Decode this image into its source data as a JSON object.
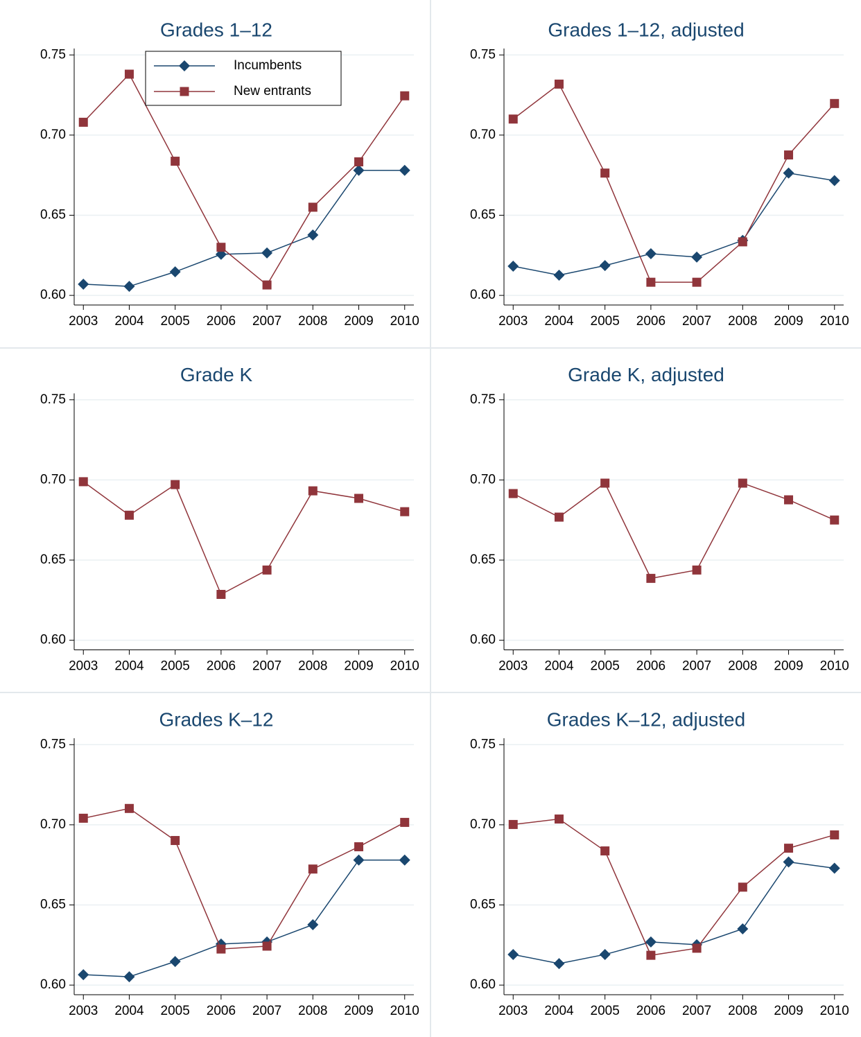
{
  "chart_data": [
    {
      "type": "line",
      "title": "Grades 1–12",
      "legend": "top",
      "x": [
        2003,
        2004,
        2005,
        2006,
        2007,
        2008,
        2009,
        2010
      ],
      "xlim": [
        2002.8,
        2010.2
      ],
      "xticks": [
        2003,
        2004,
        2005,
        2006,
        2007,
        2008,
        2009,
        2010
      ],
      "ylim": [
        0.594,
        0.754
      ],
      "yticks": [
        {
          "value": 0.6,
          "label": "0.60"
        },
        0.65,
        {
          "value": 0.7,
          "label": "0.70"
        },
        0.75
      ],
      "grid": true,
      "series": [
        {
          "name": "Incumbents",
          "color": "#1a476f",
          "marker": "diamond",
          "values": [
            0.607,
            0.6056,
            0.6147,
            0.6256,
            0.6265,
            0.6377,
            0.678,
            0.678
          ]
        },
        {
          "name": "New entrants",
          "color": "#90353b",
          "marker": "square",
          "values": [
            0.708,
            0.738,
            0.6837,
            0.63,
            0.6065,
            0.655,
            0.6833,
            0.7245
          ]
        }
      ]
    },
    {
      "type": "line",
      "title": "Grades 1–12, adjusted",
      "x": [
        2003,
        2004,
        2005,
        2006,
        2007,
        2008,
        2009,
        2010
      ],
      "xlim": [
        2002.8,
        2010.2
      ],
      "xticks": [
        2003,
        2004,
        2005,
        2006,
        2007,
        2008,
        2009,
        2010
      ],
      "ylim": [
        0.594,
        0.754
      ],
      "yticks": [
        {
          "value": 0.6,
          "label": "0.60"
        },
        0.65,
        {
          "value": 0.7,
          "label": "0.70"
        },
        0.75
      ],
      "grid": true,
      "series": [
        {
          "name": "Incumbents",
          "color": "#1a476f",
          "marker": "diamond",
          "values": [
            0.6182,
            0.6126,
            0.6186,
            0.626,
            0.6239,
            0.6343,
            0.6763,
            0.6716
          ]
        },
        {
          "name": "New entrants",
          "color": "#90353b",
          "marker": "square",
          "values": [
            0.71,
            0.7318,
            0.6763,
            0.6082,
            0.6082,
            0.6334,
            0.6876,
            0.7197
          ]
        }
      ]
    },
    {
      "type": "line",
      "title": "Grade K",
      "x": [
        2003,
        2004,
        2005,
        2006,
        2007,
        2008,
        2009,
        2010
      ],
      "xlim": [
        2002.8,
        2010.2
      ],
      "xticks": [
        2003,
        2004,
        2005,
        2006,
        2007,
        2008,
        2009,
        2010
      ],
      "ylim": [
        0.594,
        0.754
      ],
      "yticks": [
        {
          "value": 0.6,
          "label": "0.60"
        },
        0.65,
        {
          "value": 0.7,
          "label": "0.70"
        },
        0.75
      ],
      "grid": true,
      "series": [
        {
          "name": "New entrants",
          "color": "#90353b",
          "marker": "square",
          "values": [
            0.6989,
            0.678,
            0.6971,
            0.6286,
            0.6438,
            0.6932,
            0.6885,
            0.6802
          ]
        }
      ]
    },
    {
      "type": "line",
      "title": "Grade K, adjusted",
      "x": [
        2003,
        2004,
        2005,
        2006,
        2007,
        2008,
        2009,
        2010
      ],
      "xlim": [
        2002.8,
        2010.2
      ],
      "xticks": [
        2003,
        2004,
        2005,
        2006,
        2007,
        2008,
        2009,
        2010
      ],
      "ylim": [
        0.594,
        0.754
      ],
      "yticks": [
        {
          "value": 0.6,
          "label": "0.60"
        },
        0.65,
        {
          "value": 0.7,
          "label": "0.70"
        },
        0.75
      ],
      "grid": true,
      "series": [
        {
          "name": "New entrants",
          "color": "#90353b",
          "marker": "square",
          "values": [
            0.6915,
            0.6768,
            0.698,
            0.6386,
            0.6438,
            0.698,
            0.6876,
            0.675
          ]
        }
      ]
    },
    {
      "type": "line",
      "title": "Grades K–12",
      "x": [
        2003,
        2004,
        2005,
        2006,
        2007,
        2008,
        2009,
        2010
      ],
      "xlim": [
        2002.8,
        2010.2
      ],
      "xticks": [
        2003,
        2004,
        2005,
        2006,
        2007,
        2008,
        2009,
        2010
      ],
      "ylim": [
        0.594,
        0.754
      ],
      "yticks": [
        {
          "value": 0.6,
          "label": "0.60"
        },
        0.65,
        {
          "value": 0.7,
          "label": "0.70"
        },
        0.75
      ],
      "grid": true,
      "series": [
        {
          "name": "Incumbents",
          "color": "#1a476f",
          "marker": "diamond",
          "values": [
            0.6065,
            0.6052,
            0.6147,
            0.6256,
            0.6269,
            0.6377,
            0.678,
            0.678
          ]
        },
        {
          "name": "New entrants",
          "color": "#90353b",
          "marker": "square",
          "values": [
            0.7041,
            0.7102,
            0.6902,
            0.6225,
            0.6243,
            0.6724,
            0.6863,
            0.7015
          ]
        }
      ]
    },
    {
      "type": "line",
      "title": "Grades K–12, adjusted",
      "x": [
        2003,
        2004,
        2005,
        2006,
        2007,
        2008,
        2009,
        2010
      ],
      "xlim": [
        2002.8,
        2010.2
      ],
      "xticks": [
        2003,
        2004,
        2005,
        2006,
        2007,
        2008,
        2009,
        2010
      ],
      "ylim": [
        0.594,
        0.754
      ],
      "yticks": [
        {
          "value": 0.6,
          "label": "0.60"
        },
        0.65,
        {
          "value": 0.7,
          "label": "0.70"
        },
        0.75
      ],
      "grid": true,
      "series": [
        {
          "name": "Incumbents",
          "color": "#1a476f",
          "marker": "diamond",
          "values": [
            0.6191,
            0.6134,
            0.6191,
            0.6269,
            0.6252,
            0.6351,
            0.6768,
            0.6729
          ]
        },
        {
          "name": "New entrants",
          "color": "#90353b",
          "marker": "square",
          "values": [
            0.7002,
            0.7036,
            0.6837,
            0.6186,
            0.623,
            0.6611,
            0.6854,
            0.6937
          ]
        }
      ]
    }
  ]
}
